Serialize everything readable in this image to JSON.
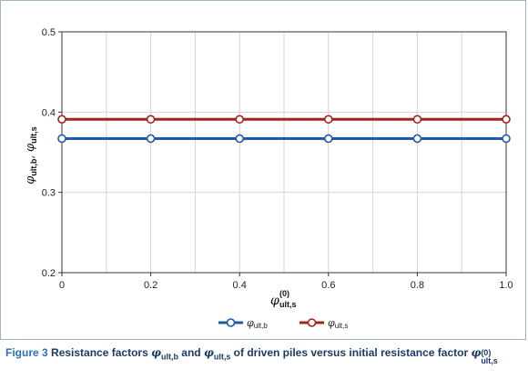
{
  "figure": {
    "caption_label": "Figure 3",
    "caption_text": {
      "p1": "Resistance factors ",
      "sym": "φ",
      "sub_b": "ult,b",
      "p2": " and ",
      "sub_s": "ult,s",
      "p3": " of driven piles versus initial resistance factor ",
      "sup_0": "(0)"
    }
  },
  "chart_data": {
    "type": "line",
    "title": "",
    "xlabel": {
      "symbol": "φ",
      "subscript": "ult,s",
      "superscript": "(0)"
    },
    "ylabel": {
      "symbol": "φ",
      "subscript_1": "ult,b",
      "separator": ", ",
      "subscript_2": "ult,s"
    },
    "xlim": [
      0,
      1.0
    ],
    "ylim": [
      0.2,
      0.5
    ],
    "xticks": [
      0,
      0.2,
      0.4,
      0.6,
      0.8,
      1.0
    ],
    "xtick_labels": [
      "0",
      "0.2",
      "0.4",
      "0.6",
      "0.8",
      "1.0"
    ],
    "yticks": [
      0.2,
      0.3,
      0.4,
      0.5
    ],
    "ytick_labels": [
      "0.2",
      "0.3",
      "0.4",
      "0.5"
    ],
    "x_minor_step": 0.1,
    "grid": true,
    "legend_position": "bottom-center",
    "x": [
      0,
      0.2,
      0.4,
      0.6,
      0.8,
      1.0
    ],
    "series": [
      {
        "name": "φult,b",
        "symbol": "φ",
        "subscript": "ult,b",
        "color": "#1f5aa6",
        "values": [
          0.367,
          0.367,
          0.367,
          0.367,
          0.367,
          0.367
        ]
      },
      {
        "name": "φult,s",
        "symbol": "φ",
        "subscript": "ult,s",
        "color": "#a3231f",
        "values": [
          0.391,
          0.391,
          0.391,
          0.391,
          0.391,
          0.391
        ]
      }
    ]
  }
}
